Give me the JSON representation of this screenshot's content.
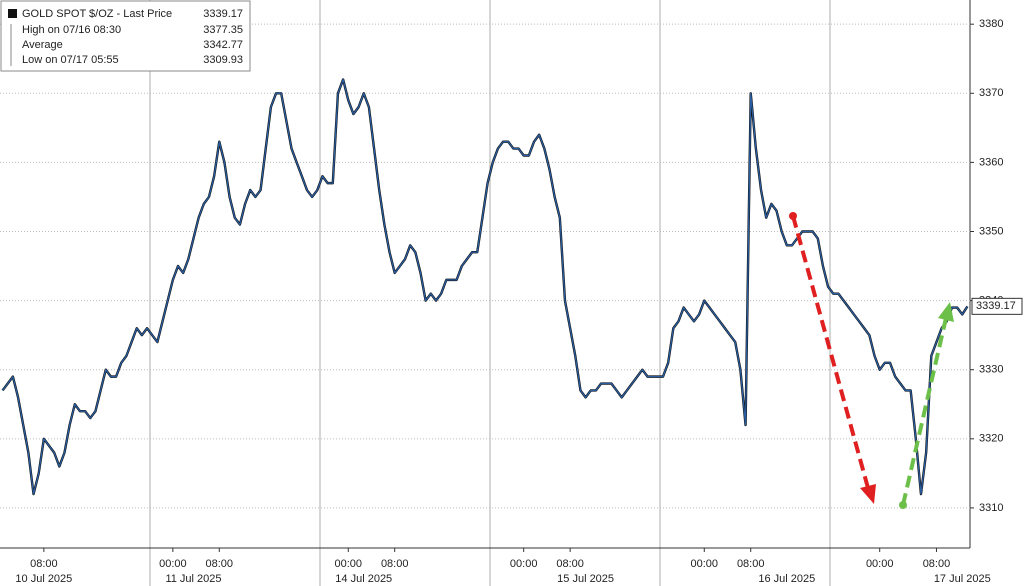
{
  "chart_data": {
    "type": "line",
    "categories": [
      null,
      null,
      null,
      null,
      null,
      null,
      null,
      null,
      "08:00",
      null,
      null,
      null,
      null,
      null,
      null,
      null,
      null,
      null,
      null,
      null,
      null,
      null,
      null,
      null,
      null,
      null,
      null,
      null,
      null,
      null,
      null,
      null,
      null,
      "00:00",
      null,
      null,
      null,
      null,
      null,
      null,
      null,
      null,
      "08:00",
      null,
      null,
      null,
      null,
      null,
      null,
      null,
      null,
      null,
      null,
      null,
      null,
      null,
      null,
      null,
      null,
      null,
      null,
      null,
      null,
      null,
      null,
      null,
      null,
      "00:00",
      null,
      null,
      null,
      null,
      null,
      null,
      null,
      null,
      "08:00",
      null,
      null,
      null,
      null,
      null,
      null,
      null,
      null,
      null,
      null,
      null,
      null,
      null,
      null,
      null,
      null,
      null,
      null,
      null,
      null,
      null,
      null,
      null,
      null,
      "00:00",
      null,
      null,
      null,
      null,
      null,
      null,
      null,
      null,
      "08:00",
      null,
      null,
      null,
      null,
      null,
      null,
      null,
      null,
      null,
      null,
      null,
      null,
      null,
      null,
      null,
      null,
      null,
      null,
      null,
      null,
      null,
      null,
      null,
      null,
      null,
      "00:00",
      null,
      null,
      null,
      null,
      null,
      null,
      null,
      null,
      "08:00",
      null,
      null,
      null,
      null,
      null,
      null,
      null,
      null,
      null,
      null,
      null,
      null,
      null,
      null,
      null,
      null,
      null,
      null,
      null,
      null,
      null,
      null,
      null,
      null,
      "00:00",
      null,
      null,
      null,
      null,
      null,
      null,
      null,
      null,
      null,
      null,
      "08:00",
      null,
      null,
      null,
      null,
      null,
      null
    ],
    "date_categories": [
      null,
      null,
      null,
      null,
      null,
      null,
      null,
      null,
      "10 Jul 2025",
      null,
      null,
      null,
      null,
      null,
      null,
      null,
      null,
      null,
      null,
      null,
      null,
      null,
      null,
      null,
      null,
      null,
      null,
      null,
      null,
      null,
      null,
      null,
      null,
      null,
      null,
      null,
      null,
      "11 Jul 2025",
      null,
      null,
      null,
      null,
      null,
      null,
      null,
      null,
      null,
      null,
      null,
      null,
      null,
      null,
      null,
      null,
      null,
      null,
      null,
      null,
      null,
      null,
      null,
      null,
      null,
      null,
      null,
      null,
      null,
      null,
      null,
      null,
      "14 Jul 2025",
      null,
      null,
      null,
      null,
      null,
      null,
      null,
      null,
      null,
      null,
      null,
      null,
      null,
      null,
      null,
      null,
      null,
      null,
      null,
      null,
      null,
      null,
      null,
      null,
      null,
      null,
      null,
      null,
      null,
      null,
      null,
      null,
      null,
      null,
      null,
      null,
      null,
      null,
      null,
      null,
      null,
      null,
      "15 Jul 2025",
      null,
      null,
      null,
      null,
      null,
      null,
      null,
      null,
      null,
      null,
      null,
      null,
      null,
      null,
      null,
      null,
      null,
      null,
      null,
      null,
      null,
      null,
      null,
      null,
      null,
      null,
      null,
      null,
      null,
      null,
      null,
      null,
      null,
      null,
      null,
      null,
      null,
      null,
      "16 Jul 2025",
      null,
      null,
      null,
      null,
      null,
      null,
      null,
      null,
      null,
      null,
      null,
      null,
      null,
      null,
      null,
      null,
      null,
      null,
      null,
      null,
      null,
      null,
      null,
      null,
      null,
      null,
      null,
      null,
      null,
      null,
      null,
      null,
      null,
      "17 Jul 2025",
      null,
      null,
      null,
      null,
      null,
      null,
      null,
      null,
      null,
      null,
      null,
      null,
      null,
      null,
      null,
      null
    ],
    "series": [
      {
        "name": "GOLD SPOT $/OZ - Last Price",
        "color": "#2a5d9f",
        "values": [
          3327,
          3328,
          3329,
          3326,
          3322,
          3318,
          3312,
          3315,
          3320,
          3319,
          3318,
          3316,
          3318,
          3322,
          3325,
          3324,
          3324,
          3323,
          3324,
          3327,
          3330,
          3329,
          3329,
          3331,
          3332,
          3334,
          3336,
          3335,
          3336,
          3335,
          3334,
          3337,
          3340,
          3343,
          3345,
          3344,
          3346,
          3349,
          3352,
          3354,
          3355,
          3358,
          3363,
          3360,
          3355,
          3352,
          3351,
          3354,
          3356,
          3355,
          3356,
          3362,
          3368,
          3370,
          3370,
          3366,
          3362,
          3360,
          3358,
          3356,
          3355,
          3356,
          3358,
          3357,
          3357,
          3370,
          3372,
          3369,
          3367,
          3368,
          3370,
          3368,
          3362,
          3356,
          3351,
          3347,
          3344,
          3345,
          3346,
          3348,
          3347,
          3344,
          3340,
          3341,
          3340,
          3341,
          3343,
          3343,
          3343,
          3345,
          3346,
          3347,
          3347,
          3352,
          3357,
          3360,
          3362,
          3363,
          3363,
          3362,
          3362,
          3361,
          3361,
          3363,
          3364,
          3362,
          3359,
          3355,
          3352,
          3340,
          3336,
          3332,
          3327,
          3326,
          3327,
          3327,
          3328,
          3328,
          3328,
          3327,
          3326,
          3327,
          3328,
          3329,
          3330,
          3329,
          3329,
          3329,
          3329,
          3331,
          3336,
          3337,
          3339,
          3338,
          3337,
          3338,
          3340,
          3339,
          3338,
          3337,
          3336,
          3335,
          3334,
          3330,
          3322,
          3370,
          3362,
          3356,
          3352,
          3354,
          3353,
          3350,
          3348,
          3348,
          3349,
          3350,
          3350,
          3350,
          3349,
          3345,
          3342,
          3341,
          3341,
          3340,
          3339,
          3338,
          3337,
          3336,
          3335,
          3332,
          3330,
          3331,
          3331,
          3329,
          3328,
          3327,
          3327,
          3320,
          3312,
          3318,
          3332,
          3334,
          3336,
          3337,
          3339,
          3339,
          3338,
          3339.17
        ]
      }
    ],
    "stats": [
      {
        "label": "High on 07/16 08:30",
        "value": 3377.35
      },
      {
        "label": "Average",
        "value": 3342.77
      },
      {
        "label": "Low on 07/17 05:55",
        "value": 3309.93
      }
    ],
    "ylim": [
      3304.2,
      3383.5
    ],
    "yticks": [
      3310,
      3320,
      3330,
      3340,
      3350,
      3360,
      3370,
      3380
    ],
    "grid": true
  }
}
